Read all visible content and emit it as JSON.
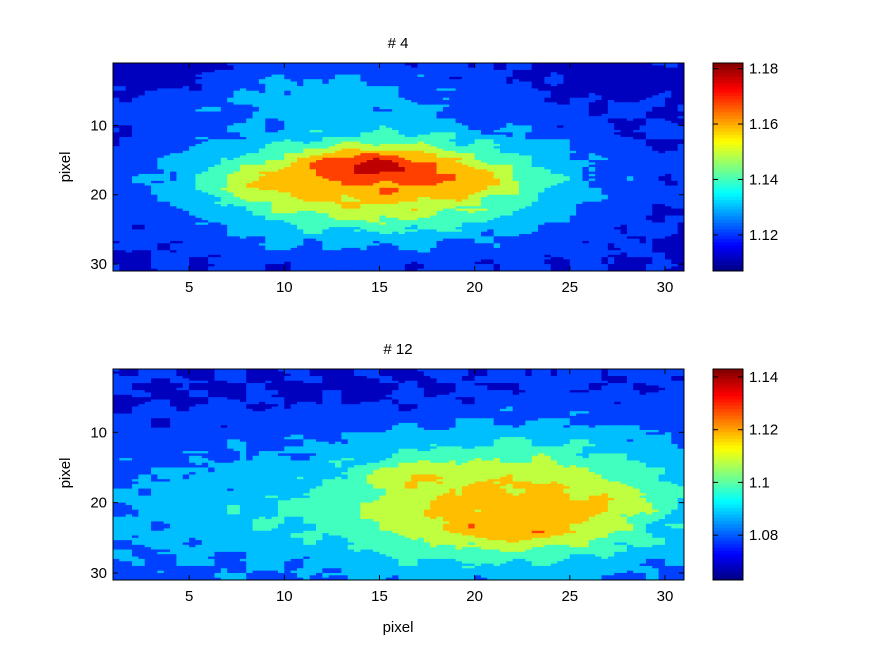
{
  "chart_data": [
    {
      "type": "heatmap",
      "subtype": "filled-contour",
      "title": "# 4",
      "xlabel": "",
      "ylabel": "pixel",
      "xlim": [
        1,
        31
      ],
      "ylim": [
        1,
        31
      ],
      "y_reversed": true,
      "x_ticks": [
        5,
        10,
        15,
        20,
        25,
        30
      ],
      "y_ticks": [
        10,
        20,
        30
      ],
      "colorbar": {
        "range": [
          1.107,
          1.182
        ],
        "ticks": [
          1.12,
          1.14,
          1.16,
          1.18
        ],
        "tick_labels": [
          "1.12",
          "1.14",
          "1.16",
          "1.18"
        ]
      },
      "colormap": "jet",
      "baseline": 1.115,
      "peaks": [
        {
          "x": 15.0,
          "y": 18.5,
          "sx": 6.8,
          "sy": 5.5,
          "amp": 0.045
        },
        {
          "x": 14.5,
          "y": 15.5,
          "sx": 3.0,
          "sy": 1.6,
          "amp": 0.02
        },
        {
          "x": 8.5,
          "y": 18.5,
          "sx": 2.2,
          "sy": 1.4,
          "amp": 0.012
        },
        {
          "x": 20.0,
          "y": 18.0,
          "sx": 2.2,
          "sy": 1.5,
          "amp": 0.01
        },
        {
          "x": 12.0,
          "y": 5.0,
          "sx": 6.0,
          "sy": 3.0,
          "amp": 0.012
        },
        {
          "x": 27.5,
          "y": 3.0,
          "sx": 1.6,
          "sy": 1.2,
          "amp": -0.012
        },
        {
          "x": 4.0,
          "y": 3.0,
          "sx": 2.5,
          "sy": 1.5,
          "amp": -0.008
        }
      ]
    },
    {
      "type": "heatmap",
      "subtype": "filled-contour",
      "title": "# 12",
      "xlabel": "pixel",
      "ylabel": "pixel",
      "xlim": [
        1,
        31
      ],
      "ylim": [
        1,
        31
      ],
      "y_reversed": true,
      "x_ticks": [
        5,
        10,
        15,
        20,
        25,
        30
      ],
      "y_ticks": [
        10,
        20,
        30
      ],
      "colorbar": {
        "range": [
          1.063,
          1.143
        ],
        "ticks": [
          1.08,
          1.1,
          1.12,
          1.14
        ],
        "tick_labels": [
          "1.08",
          "1.1",
          "1.12",
          "1.14"
        ]
      },
      "colormap": "jet",
      "baseline": 1.074,
      "peaks": [
        {
          "x": 22.0,
          "y": 20.0,
          "sx": 6.8,
          "sy": 6.8,
          "amp": 0.042
        },
        {
          "x": 22.5,
          "y": 24.0,
          "sx": 3.2,
          "sy": 1.3,
          "amp": 0.012
        },
        {
          "x": 16.5,
          "y": 16.0,
          "sx": 1.3,
          "sy": 1.2,
          "amp": 0.012
        },
        {
          "x": 27.5,
          "y": 20.0,
          "sx": 1.4,
          "sy": 1.2,
          "amp": 0.01
        },
        {
          "x": 6.0,
          "y": 22.0,
          "sx": 8.0,
          "sy": 7.0,
          "amp": 0.012
        },
        {
          "x": 14.0,
          "y": 4.0,
          "sx": 8.0,
          "sy": 2.5,
          "amp": -0.004
        }
      ]
    }
  ]
}
